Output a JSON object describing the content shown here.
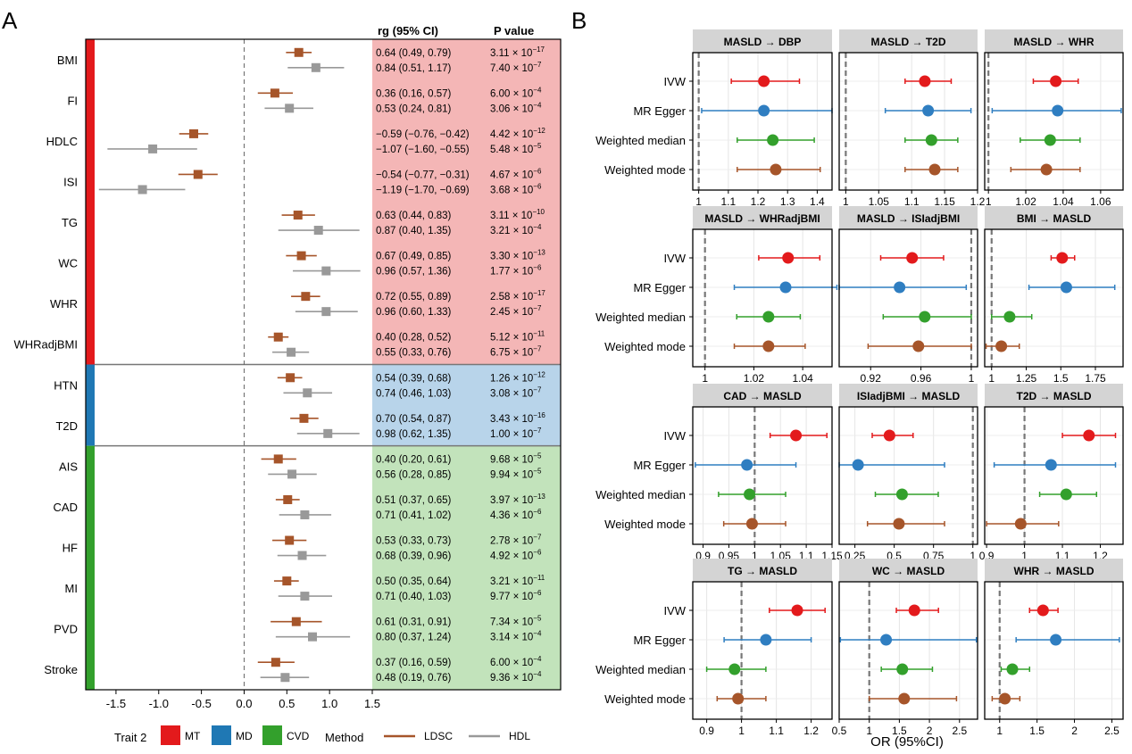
{
  "panelA": {
    "label": "A",
    "header_rg": "rg (95% CI)",
    "header_p": "P value",
    "section_colors": {
      "MT": "#e31a1c",
      "MD": "#1f78b4",
      "CVD": "#33a02c"
    },
    "bg_colors": {
      "MT": "#f4b6b6",
      "MD": "#b8d4ea",
      "CVD": "#c2e3bb"
    },
    "method_colors": {
      "LDSC": "#a6552a",
      "HDL": "#999999"
    },
    "x_ticks": [
      "-1.5",
      "-1.0",
      "-0.5",
      "0.0",
      "0.5",
      "1.0",
      "1.5"
    ]
  },
  "panelB": {
    "label": "B",
    "method_labels": [
      "IVW",
      "MR Egger",
      "Weighted median",
      "Weighted mode"
    ],
    "method_colors": [
      "#e31a1c",
      "#2f7ec1",
      "#33a02c",
      "#a6552a"
    ],
    "xlabel": "OR (95%CI)"
  },
  "legend": {
    "trait_title": "Trait 2",
    "traits": [
      {
        "label": "MT",
        "color": "#e31a1c"
      },
      {
        "label": "MD",
        "color": "#1f78b4"
      },
      {
        "label": "CVD",
        "color": "#33a02c"
      }
    ],
    "method_title": "Method",
    "methods": [
      {
        "label": "LDSC",
        "color": "#a6552a"
      },
      {
        "label": "HDL",
        "color": "#999999"
      }
    ]
  },
  "chart_data": [
    {
      "type": "forest",
      "xlim": [
        -1.75,
        1.5
      ],
      "x_ticks": [
        -1.5,
        -1.0,
        -0.5,
        0.0,
        0.5,
        1.0,
        1.5
      ],
      "reference_line": 0,
      "rows": [
        {
          "trait": "BMI",
          "group": "MT",
          "ldsc": {
            "est": 0.64,
            "lo": 0.49,
            "hi": 0.79,
            "text": "0.64 (0.49, 0.79)",
            "p_base": "3.11 × 10",
            "p_exp": "−17"
          },
          "hdl": {
            "est": 0.84,
            "lo": 0.51,
            "hi": 1.17,
            "text": "0.84 (0.51, 1.17)",
            "p_base": "7.40 × 10",
            "p_exp": "−7"
          }
        },
        {
          "trait": "FI",
          "group": "MT",
          "ldsc": {
            "est": 0.36,
            "lo": 0.16,
            "hi": 0.57,
            "text": "0.36 (0.16, 0.57)",
            "p_base": "6.00 × 10",
            "p_exp": "−4"
          },
          "hdl": {
            "est": 0.53,
            "lo": 0.24,
            "hi": 0.81,
            "text": "0.53 (0.24, 0.81)",
            "p_base": "3.06 × 10",
            "p_exp": "−4"
          }
        },
        {
          "trait": "HDLC",
          "group": "MT",
          "ldsc": {
            "est": -0.59,
            "lo": -0.76,
            "hi": -0.42,
            "text": "−0.59 (−0.76, −0.42)",
            "p_base": "4.42 × 10",
            "p_exp": "−12"
          },
          "hdl": {
            "est": -1.07,
            "lo": -1.6,
            "hi": -0.55,
            "text": "−1.07 (−1.60, −0.55)",
            "p_base": "5.48 × 10",
            "p_exp": "−5"
          }
        },
        {
          "trait": "ISI",
          "group": "MT",
          "ldsc": {
            "est": -0.54,
            "lo": -0.77,
            "hi": -0.31,
            "text": "−0.54 (−0.77, −0.31)",
            "p_base": "4.67 × 10",
            "p_exp": "−6"
          },
          "hdl": {
            "est": -1.19,
            "lo": -1.7,
            "hi": -0.69,
            "text": "−1.19 (−1.70, −0.69)",
            "p_base": "3.68 × 10",
            "p_exp": "−6"
          }
        },
        {
          "trait": "TG",
          "group": "MT",
          "ldsc": {
            "est": 0.63,
            "lo": 0.44,
            "hi": 0.83,
            "text": "0.63 (0.44, 0.83)",
            "p_base": "3.11 × 10",
            "p_exp": "−10"
          },
          "hdl": {
            "est": 0.87,
            "lo": 0.4,
            "hi": 1.35,
            "text": "0.87 (0.40, 1.35)",
            "p_base": "3.21 × 10",
            "p_exp": "−4"
          }
        },
        {
          "trait": "WC",
          "group": "MT",
          "ldsc": {
            "est": 0.67,
            "lo": 0.49,
            "hi": 0.85,
            "text": "0.67 (0.49, 0.85)",
            "p_base": "3.30 × 10",
            "p_exp": "−13"
          },
          "hdl": {
            "est": 0.96,
            "lo": 0.57,
            "hi": 1.36,
            "text": "0.96 (0.57, 1.36)",
            "p_base": "1.77 × 10",
            "p_exp": "−6"
          }
        },
        {
          "trait": "WHR",
          "group": "MT",
          "ldsc": {
            "est": 0.72,
            "lo": 0.55,
            "hi": 0.89,
            "text": "0.72 (0.55, 0.89)",
            "p_base": "2.58 × 10",
            "p_exp": "−17"
          },
          "hdl": {
            "est": 0.96,
            "lo": 0.6,
            "hi": 1.33,
            "text": "0.96 (0.60, 1.33)",
            "p_base": "2.45 × 10",
            "p_exp": "−7"
          }
        },
        {
          "trait": "WHRadjBMI",
          "group": "MT",
          "ldsc": {
            "est": 0.4,
            "lo": 0.28,
            "hi": 0.52,
            "text": "0.40 (0.28, 0.52)",
            "p_base": "5.12 × 10",
            "p_exp": "−11"
          },
          "hdl": {
            "est": 0.55,
            "lo": 0.33,
            "hi": 0.76,
            "text": "0.55 (0.33, 0.76)",
            "p_base": "6.75 × 10",
            "p_exp": "−7"
          }
        },
        {
          "trait": "HTN",
          "group": "MD",
          "ldsc": {
            "est": 0.54,
            "lo": 0.39,
            "hi": 0.68,
            "text": "0.54 (0.39, 0.68)",
            "p_base": "1.26 × 10",
            "p_exp": "−12"
          },
          "hdl": {
            "est": 0.74,
            "lo": 0.46,
            "hi": 1.03,
            "text": "0.74 (0.46, 1.03)",
            "p_base": "3.08 × 10",
            "p_exp": "−7"
          }
        },
        {
          "trait": "T2D",
          "group": "MD",
          "ldsc": {
            "est": 0.7,
            "lo": 0.54,
            "hi": 0.87,
            "text": "0.70 (0.54, 0.87)",
            "p_base": "3.43 × 10",
            "p_exp": "−16"
          },
          "hdl": {
            "est": 0.98,
            "lo": 0.62,
            "hi": 1.35,
            "text": "0.98 (0.62, 1.35)",
            "p_base": "1.00 × 10",
            "p_exp": "−7"
          }
        },
        {
          "trait": "AIS",
          "group": "CVD",
          "ldsc": {
            "est": 0.4,
            "lo": 0.2,
            "hi": 0.61,
            "text": "0.40 (0.20, 0.61)",
            "p_base": "9.68 × 10",
            "p_exp": "−5"
          },
          "hdl": {
            "est": 0.56,
            "lo": 0.28,
            "hi": 0.85,
            "text": "0.56 (0.28, 0.85)",
            "p_base": "9.94 × 10",
            "p_exp": "−5"
          }
        },
        {
          "trait": "CAD",
          "group": "CVD",
          "ldsc": {
            "est": 0.51,
            "lo": 0.37,
            "hi": 0.65,
            "text": "0.51 (0.37, 0.65)",
            "p_base": "3.97 × 10",
            "p_exp": "−13"
          },
          "hdl": {
            "est": 0.71,
            "lo": 0.41,
            "hi": 1.02,
            "text": "0.71 (0.41, 1.02)",
            "p_base": "4.36 × 10",
            "p_exp": "−6"
          }
        },
        {
          "trait": "HF",
          "group": "CVD",
          "ldsc": {
            "est": 0.53,
            "lo": 0.33,
            "hi": 0.73,
            "text": "0.53 (0.33, 0.73)",
            "p_base": "2.78 × 10",
            "p_exp": "−7"
          },
          "hdl": {
            "est": 0.68,
            "lo": 0.39,
            "hi": 0.96,
            "text": "0.68 (0.39, 0.96)",
            "p_base": "4.92 × 10",
            "p_exp": "−6"
          }
        },
        {
          "trait": "MI",
          "group": "CVD",
          "ldsc": {
            "est": 0.5,
            "lo": 0.35,
            "hi": 0.64,
            "text": "0.50 (0.35, 0.64)",
            "p_base": "3.21 × 10",
            "p_exp": "−11"
          },
          "hdl": {
            "est": 0.71,
            "lo": 0.4,
            "hi": 1.03,
            "text": "0.71 (0.40, 1.03)",
            "p_base": "9.77 × 10",
            "p_exp": "−6"
          }
        },
        {
          "trait": "PVD",
          "group": "CVD",
          "ldsc": {
            "est": 0.61,
            "lo": 0.31,
            "hi": 0.91,
            "text": "0.61 (0.31, 0.91)",
            "p_base": "7.34 × 10",
            "p_exp": "−5"
          },
          "hdl": {
            "est": 0.8,
            "lo": 0.37,
            "hi": 1.24,
            "text": "0.80 (0.37, 1.24)",
            "p_base": "3.14 × 10",
            "p_exp": "−4"
          }
        },
        {
          "trait": "Stroke",
          "group": "CVD",
          "ldsc": {
            "est": 0.37,
            "lo": 0.16,
            "hi": 0.59,
            "text": "0.37 (0.16, 0.59)",
            "p_base": "6.00 × 10",
            "p_exp": "−4"
          },
          "hdl": {
            "est": 0.48,
            "lo": 0.19,
            "hi": 0.76,
            "text": "0.48 (0.19, 0.76)",
            "p_base": "9.36 × 10",
            "p_exp": "−4"
          }
        }
      ]
    },
    {
      "type": "forest_grid",
      "series": [
        "IVW",
        "MR Egger",
        "Weighted median",
        "Weighted mode"
      ],
      "panels": [
        {
          "title": "MASLD → DBP",
          "xlim": [
            0.98,
            1.45
          ],
          "ticks": [
            1,
            1.1,
            1.2,
            1.3,
            1.4
          ],
          "tick_labels": [
            "1",
            "1.1",
            "1.2",
            "1.3",
            "1.4"
          ],
          "ref": 1,
          "points": [
            {
              "est": 1.22,
              "lo": 1.11,
              "hi": 1.34
            },
            {
              "est": 1.22,
              "lo": 1.01,
              "hi": 1.45
            },
            {
              "est": 1.25,
              "lo": 1.13,
              "hi": 1.39
            },
            {
              "est": 1.26,
              "lo": 1.13,
              "hi": 1.41
            }
          ]
        },
        {
          "title": "MASLD → T2D",
          "xlim": [
            0.99,
            1.2
          ],
          "ticks": [
            1,
            1.05,
            1.1,
            1.15,
            1.2
          ],
          "tick_labels": [
            "1",
            "1.05",
            "1.1",
            "1.15",
            "1.2"
          ],
          "ref": 1,
          "points": [
            {
              "est": 1.12,
              "lo": 1.09,
              "hi": 1.16
            },
            {
              "est": 1.125,
              "lo": 1.06,
              "hi": 1.19
            },
            {
              "est": 1.13,
              "lo": 1.09,
              "hi": 1.17
            },
            {
              "est": 1.135,
              "lo": 1.09,
              "hi": 1.17
            }
          ]
        },
        {
          "title": "MASLD → WHR",
          "xlim": [
            0.998,
            1.072
          ],
          "ticks": [
            1,
            1.02,
            1.04,
            1.06
          ],
          "tick_labels": [
            "1",
            "1.02",
            "1.04",
            "1.06"
          ],
          "ref": 1,
          "points": [
            {
              "est": 1.036,
              "lo": 1.024,
              "hi": 1.048
            },
            {
              "est": 1.037,
              "lo": 1.002,
              "hi": 1.071
            },
            {
              "est": 1.033,
              "lo": 1.017,
              "hi": 1.049
            },
            {
              "est": 1.031,
              "lo": 1.012,
              "hi": 1.049
            }
          ]
        },
        {
          "title": "MASLD → WHRadjBMI",
          "xlim": [
            0.995,
            1.052
          ],
          "ticks": [
            1,
            1.02,
            1.04
          ],
          "tick_labels": [
            "1",
            "1.02",
            "1.04"
          ],
          "ref": 1,
          "points": [
            {
              "est": 1.034,
              "lo": 1.022,
              "hi": 1.047
            },
            {
              "est": 1.033,
              "lo": 1.012,
              "hi": 1.054
            },
            {
              "est": 1.026,
              "lo": 1.013,
              "hi": 1.039
            },
            {
              "est": 1.026,
              "lo": 1.012,
              "hi": 1.041
            }
          ]
        },
        {
          "title": "MASLD → ISIadjBMI",
          "xlim": [
            0.895,
            1.005
          ],
          "ticks": [
            0.92,
            0.96,
            1
          ],
          "tick_labels": [
            "0.92",
            "0.96",
            "1"
          ],
          "ref": 1,
          "points": [
            {
              "est": 0.953,
              "lo": 0.928,
              "hi": 0.978
            },
            {
              "est": 0.943,
              "lo": 0.895,
              "hi": 0.996
            },
            {
              "est": 0.963,
              "lo": 0.93,
              "hi": 1.0
            },
            {
              "est": 0.958,
              "lo": 0.918,
              "hi": 1.0
            }
          ]
        },
        {
          "title": "BMI → MASLD",
          "xlim": [
            0.95,
            1.95
          ],
          "ticks": [
            1,
            1.25,
            1.5,
            1.75
          ],
          "tick_labels": [
            "1",
            "1.25",
            "1.5",
            "1.75"
          ],
          "ref": 1,
          "points": [
            {
              "est": 1.51,
              "lo": 1.43,
              "hi": 1.6
            },
            {
              "est": 1.54,
              "lo": 1.27,
              "hi": 1.89
            },
            {
              "est": 1.13,
              "lo": 1.0,
              "hi": 1.29
            },
            {
              "est": 1.07,
              "lo": 0.96,
              "hi": 1.2
            }
          ]
        },
        {
          "title": "CAD → MASLD",
          "xlim": [
            0.88,
            1.15
          ],
          "ticks": [
            0.9,
            0.95,
            1,
            1.05,
            1.1,
            1.15
          ],
          "tick_labels": [
            "0.9",
            "0.95",
            "1",
            "1.05",
            "1.1",
            "1.15"
          ],
          "ref": 1,
          "points": [
            {
              "est": 1.08,
              "lo": 1.03,
              "hi": 1.14
            },
            {
              "est": 0.985,
              "lo": 0.885,
              "hi": 1.08
            },
            {
              "est": 0.99,
              "lo": 0.93,
              "hi": 1.06
            },
            {
              "est": 0.995,
              "lo": 0.94,
              "hi": 1.06
            }
          ]
        },
        {
          "title": "ISIadjBMI → MASLD",
          "xlim": [
            0.15,
            1.03
          ],
          "ticks": [
            0.25,
            0.5,
            0.75,
            1
          ],
          "tick_labels": [
            "0.25",
            "0.5",
            "0.75",
            "1"
          ],
          "ref": 1,
          "points": [
            {
              "est": 0.47,
              "lo": 0.36,
              "hi": 0.62
            },
            {
              "est": 0.27,
              "lo": 0.15,
              "hi": 0.82
            },
            {
              "est": 0.55,
              "lo": 0.38,
              "hi": 0.78
            },
            {
              "est": 0.53,
              "lo": 0.33,
              "hi": 0.82
            }
          ]
        },
        {
          "title": "T2D → MASLD",
          "xlim": [
            0.895,
            1.26
          ],
          "ticks": [
            0.9,
            1,
            1.1,
            1.2
          ],
          "tick_labels": [
            "0.9",
            "1",
            "1.1",
            "1.2"
          ],
          "ref": 1,
          "points": [
            {
              "est": 1.17,
              "lo": 1.1,
              "hi": 1.24
            },
            {
              "est": 1.07,
              "lo": 0.92,
              "hi": 1.24
            },
            {
              "est": 1.11,
              "lo": 1.04,
              "hi": 1.19
            },
            {
              "est": 0.99,
              "lo": 0.9,
              "hi": 1.09
            }
          ]
        },
        {
          "title": "TG → MASLD",
          "xlim": [
            0.86,
            1.26
          ],
          "ticks": [
            0.9,
            1,
            1.1,
            1.2
          ],
          "tick_labels": [
            "0.9",
            "1",
            "1.1",
            "1.2"
          ],
          "ref": 1,
          "points": [
            {
              "est": 1.16,
              "lo": 1.08,
              "hi": 1.24
            },
            {
              "est": 1.07,
              "lo": 0.95,
              "hi": 1.2
            },
            {
              "est": 0.98,
              "lo": 0.9,
              "hi": 1.07
            },
            {
              "est": 0.99,
              "lo": 0.93,
              "hi": 1.07
            }
          ]
        },
        {
          "title": "WC → MASLD",
          "xlim": [
            0.5,
            2.8
          ],
          "ticks": [
            0.5,
            1,
            1.5,
            2,
            2.5
          ],
          "tick_labels": [
            "0.5",
            "1",
            "1.5",
            "2",
            "2.5"
          ],
          "ref": 1,
          "points": [
            {
              "est": 1.75,
              "lo": 1.45,
              "hi": 2.15
            },
            {
              "est": 1.28,
              "lo": 0.52,
              "hi": 2.78
            },
            {
              "est": 1.55,
              "lo": 1.2,
              "hi": 2.05
            },
            {
              "est": 1.58,
              "lo": 1.0,
              "hi": 2.45
            }
          ]
        },
        {
          "title": "WHR → MASLD",
          "xlim": [
            0.8,
            2.65
          ],
          "ticks": [
            1,
            1.5,
            2,
            2.5
          ],
          "tick_labels": [
            "1",
            "1.5",
            "2",
            "2.5"
          ],
          "ref": 1,
          "points": [
            {
              "est": 1.58,
              "lo": 1.4,
              "hi": 1.78
            },
            {
              "est": 1.75,
              "lo": 1.22,
              "hi": 2.6
            },
            {
              "est": 1.17,
              "lo": 1.02,
              "hi": 1.4
            },
            {
              "est": 1.07,
              "lo": 0.9,
              "hi": 1.27
            }
          ]
        }
      ]
    }
  ]
}
